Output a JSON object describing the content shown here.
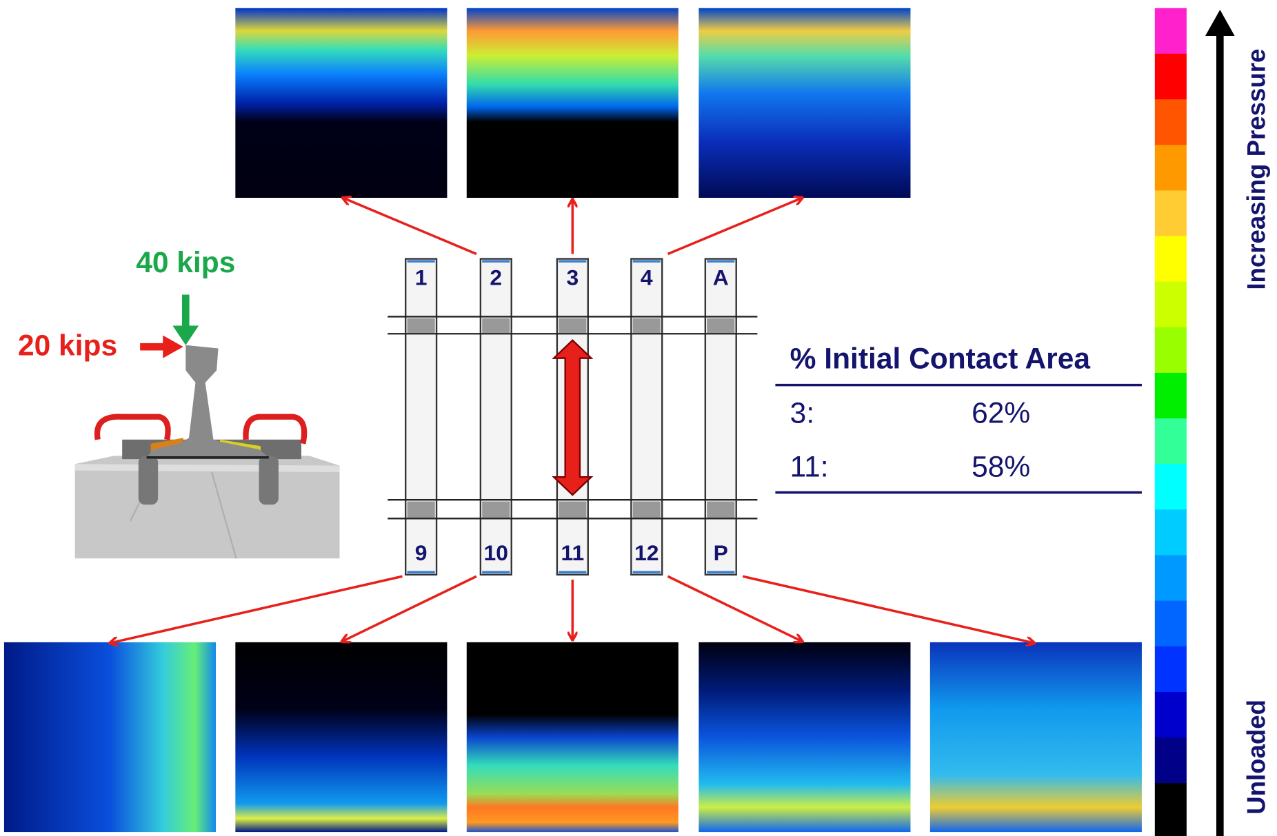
{
  "load": {
    "vertical": "40 kips",
    "lateral": "20 kips"
  },
  "sensors": {
    "top": [
      "1",
      "2",
      "3",
      "4",
      "A"
    ],
    "bottom": [
      "9",
      "10",
      "11",
      "12",
      "P"
    ]
  },
  "table": {
    "title": "% Initial Contact Area",
    "rows": [
      [
        "3:",
        "62%"
      ],
      [
        "11:",
        "58%"
      ]
    ]
  },
  "colorbar": {
    "top_label": "Increasing Pressure",
    "bottom_label": "Unloaded"
  }
}
